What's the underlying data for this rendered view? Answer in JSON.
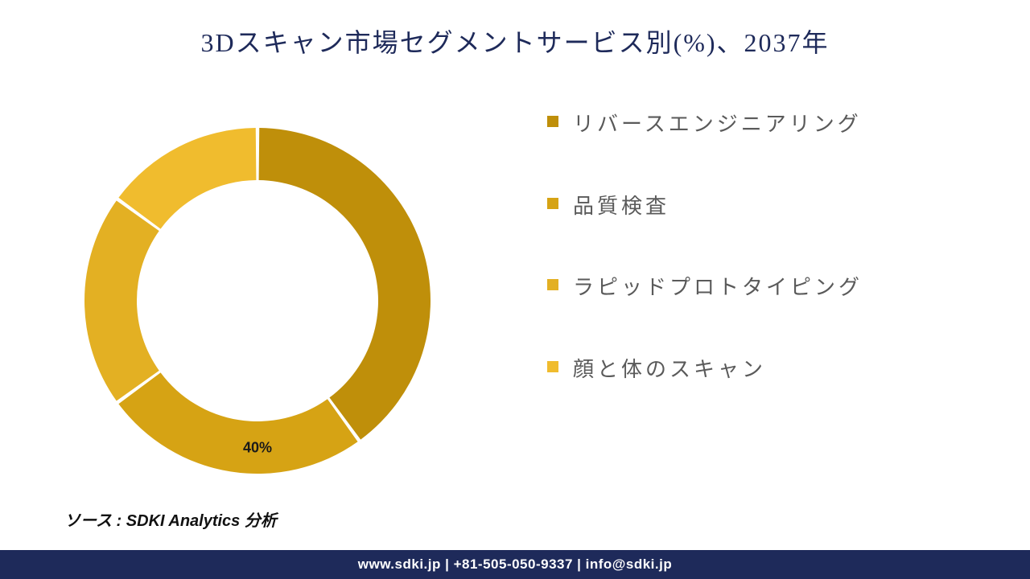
{
  "title": "3Dスキャン市場セグメントサービス別(%)、2037年",
  "title_color": "#1e2a5a",
  "title_fontsize": 32,
  "background_color": "#ffffff",
  "chart": {
    "type": "donut",
    "outer_radius": 215,
    "inner_radius": 150,
    "center_fill": "#ffffff",
    "gap_color": "#ffffff",
    "slices": [
      {
        "label": "リバースエンジニアリング",
        "value": 40,
        "color": "#bf8f0a",
        "show_value": false
      },
      {
        "label": "品質検査",
        "value": 25,
        "color": "#d6a314",
        "show_value": false
      },
      {
        "label": "ラピッドプロトタイピング",
        "value": 20,
        "color": "#e3b023",
        "show_value": false
      },
      {
        "label": "顔と体のスキャン",
        "value": 15,
        "color": "#f0bc2e",
        "show_value": false
      }
    ],
    "data_label": {
      "text": "40%",
      "fontsize": 18,
      "font_weight": "700",
      "color": "#1a1a1a"
    }
  },
  "legend": {
    "swatch_size": 14,
    "label_fontsize": 26,
    "label_color": "#5a5a5a",
    "items": [
      {
        "label": "リバースエンジニアリング",
        "color": "#bf8f0a"
      },
      {
        "label": "品質検査",
        "color": "#d6a314"
      },
      {
        "label": "ラピッドプロトタイピング",
        "color": "#e3b023"
      },
      {
        "label": "顔と体のスキャン",
        "color": "#f0bc2e"
      }
    ]
  },
  "source": {
    "prefix": "ソース : ",
    "text": "SDKI Analytics 分析",
    "fontsize": 20
  },
  "footer": {
    "text": "www.sdki.jp | +81-505-050-9337 | info@sdki.jp",
    "background": "#1e2a5a",
    "color": "#ffffff",
    "fontsize": 17
  }
}
